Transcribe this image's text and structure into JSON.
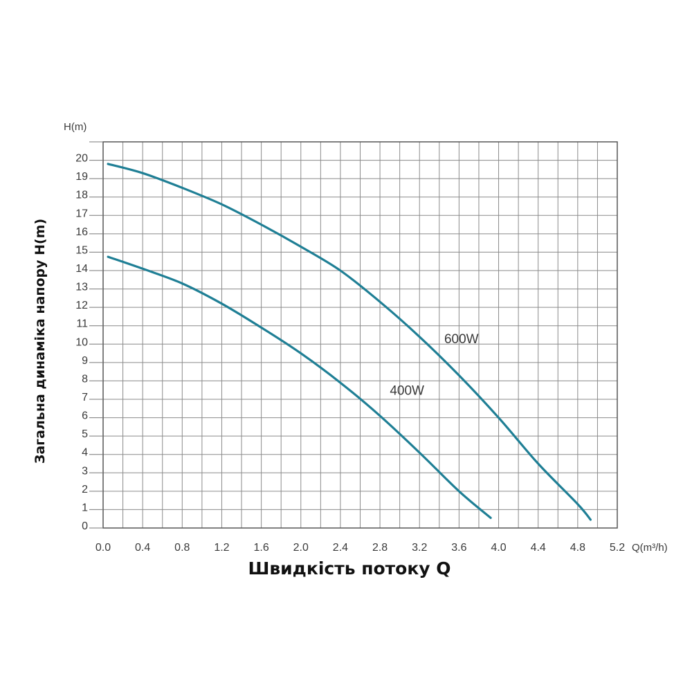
{
  "chart_data": {
    "type": "line",
    "xlabel": "Швидкість потоку Q",
    "ylabel": "Загальна динаміка напору H(m)",
    "x_unit": "Q(m³/h)",
    "y_unit": "H(m)",
    "xlim": [
      0,
      5.2
    ],
    "ylim": [
      0,
      21
    ],
    "x_ticks": [
      "0.0",
      "0.4",
      "0.8",
      "1.2",
      "1.6",
      "2.0",
      "2.4",
      "2.8",
      "3.2",
      "3.6",
      "4.0",
      "4.4",
      "4.8",
      "5.2"
    ],
    "y_ticks": [
      "0",
      "1",
      "2",
      "3",
      "4",
      "5",
      "6",
      "7",
      "8",
      "9",
      "10",
      "11",
      "12",
      "13",
      "14",
      "15",
      "16",
      "17",
      "18",
      "19",
      "20"
    ],
    "grid": true,
    "curve_color": "#1f7f95",
    "series": [
      {
        "name": "600W",
        "x": [
          0.05,
          0.4,
          0.8,
          1.2,
          1.6,
          2.0,
          2.4,
          2.8,
          3.2,
          3.6,
          4.0,
          4.4,
          4.8,
          4.93
        ],
        "y": [
          19.8,
          19.3,
          18.5,
          17.6,
          16.5,
          15.3,
          14.0,
          12.3,
          10.4,
          8.3,
          6.0,
          3.5,
          1.3,
          0.45
        ]
      },
      {
        "name": "400W",
        "x": [
          0.05,
          0.4,
          0.8,
          1.2,
          1.6,
          2.0,
          2.4,
          2.8,
          3.2,
          3.6,
          3.92
        ],
        "y": [
          14.75,
          14.1,
          13.3,
          12.2,
          10.9,
          9.5,
          7.9,
          6.1,
          4.1,
          2.0,
          0.55
        ]
      }
    ],
    "labels": [
      {
        "text": "600W",
        "x": 3.45,
        "y": 10.05
      },
      {
        "text": "400W",
        "x": 2.9,
        "y": 7.25
      }
    ]
  }
}
